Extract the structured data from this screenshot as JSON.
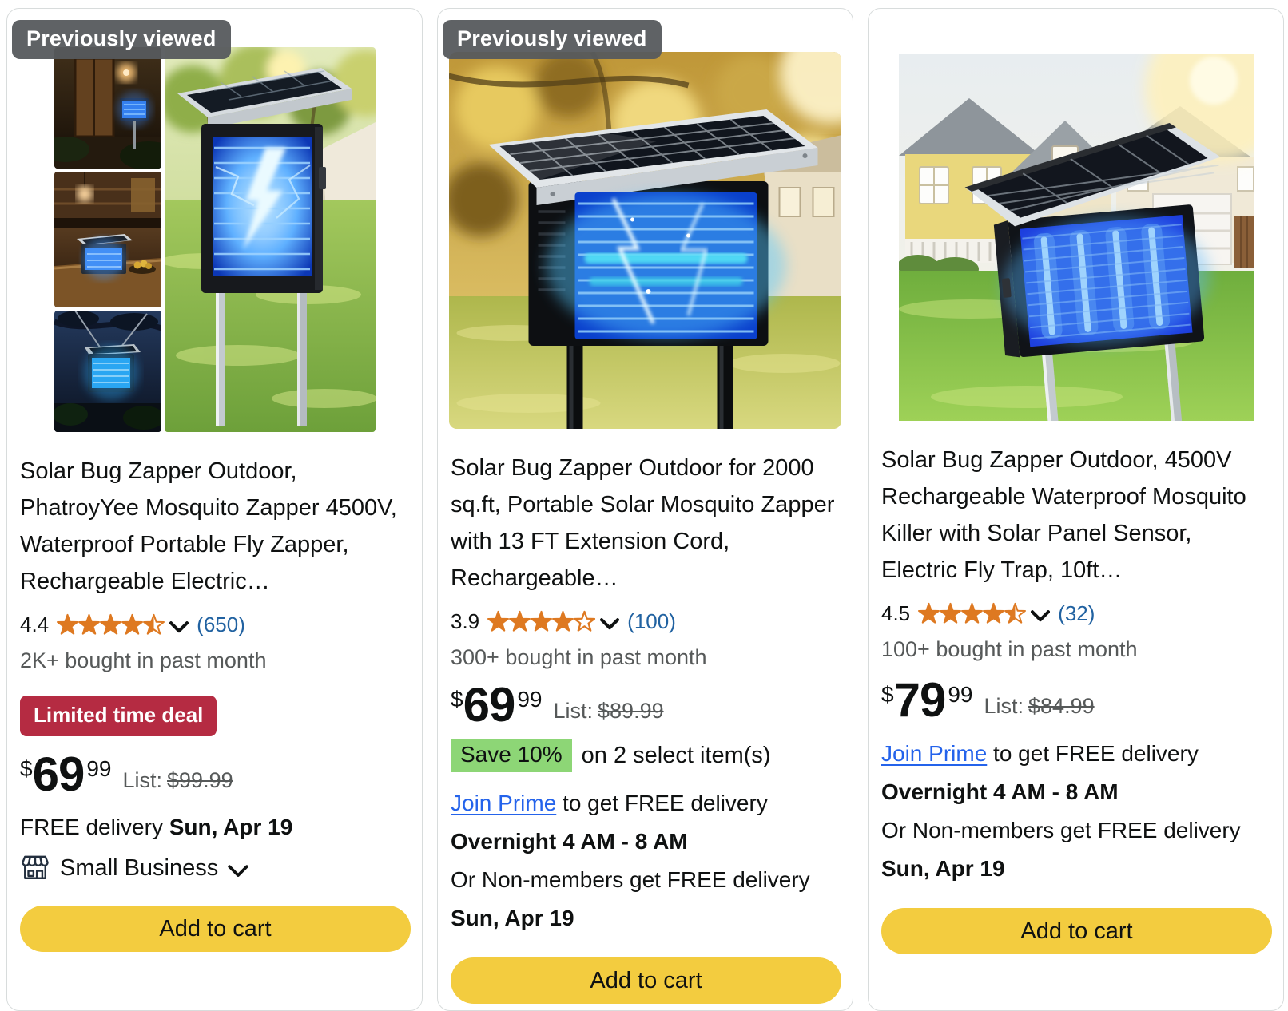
{
  "colors": {
    "star_orange": "#DE7921",
    "review_link_blue": "#2162A1",
    "prime_link_blue": "#2463EB",
    "deal_badge_red": "#B52B42",
    "save_badge_green": "#8DD676",
    "add_to_cart_yellow": "#F3CC3F",
    "viewed_badge_gray": "#55595C"
  },
  "icons": {
    "rating_expander": "chevron-down",
    "small_business_expander": "chevron-down",
    "small_business": "storefront"
  },
  "cards": [
    {
      "previously_viewed_badge": "Previously viewed",
      "title": "Solar Bug Zapper Outdoor, PhatroyYee Mosquito Zapper 4500V, Waterproof Portable Fly Zapper, Rechargeable Electric…",
      "rating_value": "4.4",
      "stars_display": 4.5,
      "review_count": "(650)",
      "bought": "2K+ bought in past month",
      "deal_badge": "Limited time deal",
      "price": {
        "symbol": "$",
        "whole": "69",
        "fraction": "99",
        "list_label": "List:",
        "list_price": "$99.99"
      },
      "delivery": {
        "prefix": "FREE delivery ",
        "date": "Sun, Apr 19"
      },
      "small_business_label": "Small Business",
      "add_to_cart_label": "Add to cart"
    },
    {
      "previously_viewed_badge": "Previously viewed",
      "title": "Solar Bug Zapper Outdoor for 2000 sq.ft, Portable Solar Mosquito Zapper with 13 FT Extension Cord, Rechargeable…",
      "rating_value": "3.9",
      "stars_display": 4,
      "review_count": "(100)",
      "bought": "300+ bought in past month",
      "price": {
        "symbol": "$",
        "whole": "69",
        "fraction": "99",
        "list_label": "List:",
        "list_price": "$89.99"
      },
      "save_badge": "Save 10%",
      "save_suffix": "on 2 select item(s)",
      "prime": {
        "link": "Join Prime",
        "suffix": " to get FREE delivery",
        "overnight": "Overnight 4 AM - 8 AM",
        "non_members": "Or Non-members get FREE delivery",
        "date": "Sun, Apr 19"
      },
      "add_to_cart_label": "Add to cart"
    },
    {
      "title": "Solar Bug Zapper Outdoor, 4500V Rechargeable Waterproof Mosquito Killer with Solar Panel Sensor, Electric Fly Trap, 10ft…",
      "rating_value": "4.5",
      "stars_display": 4.5,
      "review_count": "(32)",
      "bought": "100+ bought in past month",
      "price": {
        "symbol": "$",
        "whole": "79",
        "fraction": "99",
        "list_label": "List:",
        "list_price": "$84.99"
      },
      "prime": {
        "link": "Join Prime",
        "suffix": " to get FREE delivery",
        "overnight": "Overnight 4 AM - 8 AM",
        "non_members": "Or Non-members get FREE delivery",
        "date": "Sun, Apr 19"
      },
      "add_to_cart_label": "Add to cart"
    }
  ]
}
